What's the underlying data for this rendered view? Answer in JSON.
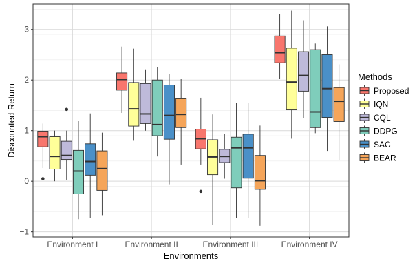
{
  "chart_data": {
    "type": "boxplot",
    "xlabel": "Environments",
    "ylabel": "Discounted Return",
    "ylim": [
      -1.1,
      3.5
    ],
    "yticks": [
      -1,
      0,
      1,
      2,
      3
    ],
    "grid": true,
    "legend_position": "right",
    "legend_title": "Methods",
    "categories": [
      "Environment I",
      "Environment II",
      "Environment III",
      "Environment IV"
    ],
    "series": [
      {
        "name": "Proposed",
        "color": "#F8766D",
        "boxes": [
          {
            "whisker_low": 0.26,
            "q1": 0.68,
            "median": 0.88,
            "q3": 0.99,
            "whisker_high": 1.14,
            "outliers": [
              0.05
            ]
          },
          {
            "whisker_low": 1.35,
            "q1": 1.8,
            "median": 2.01,
            "q3": 2.14,
            "whisker_high": 2.66,
            "outliers": []
          },
          {
            "whisker_low": 0.33,
            "q1": 0.64,
            "median": 0.84,
            "q3": 1.03,
            "whisker_high": 1.65,
            "outliers": [
              -0.2
            ]
          },
          {
            "whisker_low": 2.02,
            "q1": 2.34,
            "median": 2.54,
            "q3": 2.87,
            "whisker_high": 3.3,
            "outliers": []
          }
        ]
      },
      {
        "name": "IQN",
        "color": "#FFFF99",
        "boxes": [
          {
            "whisker_low": 0.0,
            "q1": 0.24,
            "median": 0.49,
            "q3": 0.88,
            "whisker_high": 1.0,
            "outliers": []
          },
          {
            "whisker_low": 0.8,
            "q1": 1.09,
            "median": 1.43,
            "q3": 1.95,
            "whisker_high": 2.62,
            "outliers": []
          },
          {
            "whisker_low": -0.86,
            "q1": 0.13,
            "median": 0.48,
            "q3": 0.82,
            "whisker_high": 1.32,
            "outliers": []
          },
          {
            "whisker_low": 0.84,
            "q1": 1.41,
            "median": 1.96,
            "q3": 2.63,
            "whisker_high": 3.37,
            "outliers": []
          }
        ]
      },
      {
        "name": "CQL",
        "color": "#BEBADA",
        "boxes": [
          {
            "whisker_low": 0.03,
            "q1": 0.43,
            "median": 0.51,
            "q3": 0.79,
            "whisker_high": 1.0,
            "outliers": [
              1.42
            ]
          },
          {
            "whisker_low": 1.0,
            "q1": 1.14,
            "median": 1.33,
            "q3": 1.93,
            "whisker_high": 2.21,
            "outliers": []
          },
          {
            "whisker_low": 0.05,
            "q1": 0.37,
            "median": 0.49,
            "q3": 0.63,
            "whisker_high": 0.93,
            "outliers": []
          },
          {
            "whisker_low": 1.24,
            "q1": 1.78,
            "median": 2.09,
            "q3": 2.56,
            "whisker_high": 3.18,
            "outliers": []
          }
        ]
      },
      {
        "name": "DDPG",
        "color": "#7FCDBB",
        "boxes": [
          {
            "whisker_low": -0.75,
            "q1": -0.25,
            "median": 0.2,
            "q3": 0.61,
            "whisker_high": 1.19,
            "outliers": []
          },
          {
            "whisker_low": 0.49,
            "q1": 0.9,
            "median": 1.12,
            "q3": 2.0,
            "whisker_high": 2.25,
            "outliers": []
          },
          {
            "whisker_low": -0.72,
            "q1": -0.13,
            "median": 0.66,
            "q3": 0.87,
            "whisker_high": 1.54,
            "outliers": []
          },
          {
            "whisker_low": 0.95,
            "q1": 1.06,
            "median": 1.37,
            "q3": 2.6,
            "whisker_high": 2.72,
            "outliers": []
          }
        ]
      },
      {
        "name": "SAC",
        "color": "#4A90C8",
        "boxes": [
          {
            "whisker_low": -0.72,
            "q1": 0.12,
            "median": 0.39,
            "q3": 0.74,
            "whisker_high": 1.34,
            "outliers": []
          },
          {
            "whisker_low": -0.06,
            "q1": 0.83,
            "median": 1.3,
            "q3": 1.9,
            "whisker_high": 2.12,
            "outliers": []
          },
          {
            "whisker_low": -0.72,
            "q1": 0.06,
            "median": 0.66,
            "q3": 0.93,
            "whisker_high": 1.55,
            "outliers": []
          },
          {
            "whisker_low": 0.6,
            "q1": 1.26,
            "median": 1.83,
            "q3": 2.5,
            "whisker_high": 3.06,
            "outliers": []
          }
        ]
      },
      {
        "name": "BEAR",
        "color": "#F5A55A",
        "boxes": [
          {
            "whisker_low": -0.67,
            "q1": -0.18,
            "median": 0.25,
            "q3": 0.6,
            "whisker_high": 0.96,
            "outliers": []
          },
          {
            "whisker_low": 0.33,
            "q1": 1.06,
            "median": 1.32,
            "q3": 1.63,
            "whisker_high": 2.03,
            "outliers": []
          },
          {
            "whisker_low": -0.88,
            "q1": -0.16,
            "median": 0.01,
            "q3": 0.51,
            "whisker_high": 1.1,
            "outliers": []
          },
          {
            "whisker_low": 0.41,
            "q1": 1.18,
            "median": 1.58,
            "q3": 1.85,
            "whisker_high": 2.31,
            "outliers": []
          }
        ]
      }
    ]
  }
}
